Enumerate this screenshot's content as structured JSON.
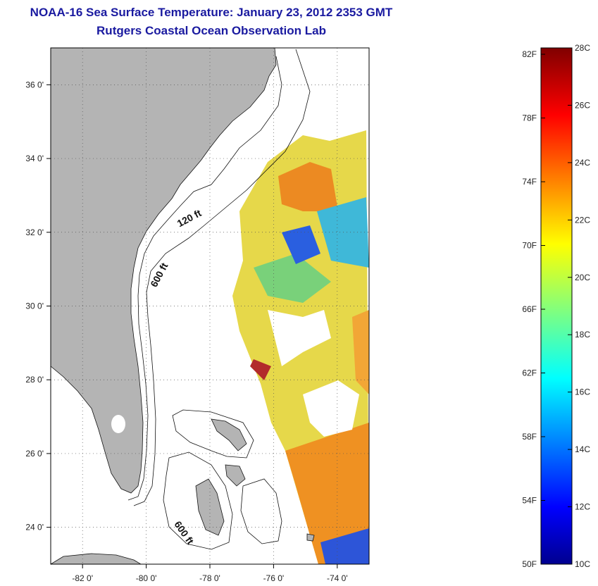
{
  "header": {
    "title": "NOAA-16 Sea Surface Temperature:  January 23, 2012 2353 GMT",
    "subtitle": "Rutgers Coastal Ocean Observation Lab"
  },
  "map": {
    "lon_range": [
      -83,
      -73
    ],
    "lat_range": [
      23,
      37
    ],
    "lon_ticks": [
      {
        "value": -82,
        "label": "-82 0'"
      },
      {
        "value": -80,
        "label": "-80 0'"
      },
      {
        "value": -78,
        "label": "-78 0'"
      },
      {
        "value": -76,
        "label": "-76 0'"
      },
      {
        "value": -74,
        "label": "-74 0'"
      }
    ],
    "lat_ticks": [
      {
        "value": 24,
        "label": "24 0'"
      },
      {
        "value": 26,
        "label": "26 0'"
      },
      {
        "value": 28,
        "label": "28 0'"
      },
      {
        "value": 30,
        "label": "30 0'"
      },
      {
        "value": 32,
        "label": "32 0'"
      },
      {
        "value": 34,
        "label": "34 0'"
      },
      {
        "value": 36,
        "label": "36 0'"
      }
    ],
    "contour_labels": [
      {
        "label": "120 ft",
        "lon": -78.6,
        "lat": 32.3,
        "rotate": -28
      },
      {
        "label": "600 ft",
        "lon": -79.5,
        "lat": 30.8,
        "rotate": -62
      },
      {
        "label": "600 ft",
        "lon": -78.9,
        "lat": 23.8,
        "rotate": 55
      }
    ],
    "colors": {
      "land": "#b4b4b4",
      "grid": "#555555"
    }
  },
  "colorbar": {
    "celsius_range": [
      10,
      28
    ],
    "fahrenheit_ticks": [
      {
        "value": 50,
        "label": "50F"
      },
      {
        "value": 54,
        "label": "54F"
      },
      {
        "value": 58,
        "label": "58F"
      },
      {
        "value": 62,
        "label": "62F"
      },
      {
        "value": 66,
        "label": "66F"
      },
      {
        "value": 70,
        "label": "70F"
      },
      {
        "value": 74,
        "label": "74F"
      },
      {
        "value": 78,
        "label": "78F"
      },
      {
        "value": 82,
        "label": "82F"
      }
    ],
    "celsius_ticks": [
      {
        "value": 10,
        "label": "10C"
      },
      {
        "value": 12,
        "label": "12C"
      },
      {
        "value": 14,
        "label": "14C"
      },
      {
        "value": 16,
        "label": "16C"
      },
      {
        "value": 18,
        "label": "18C"
      },
      {
        "value": 20,
        "label": "20C"
      },
      {
        "value": 22,
        "label": "22C"
      },
      {
        "value": 24,
        "label": "24C"
      },
      {
        "value": 26,
        "label": "26C"
      },
      {
        "value": 28,
        "label": "28C"
      }
    ],
    "colormap": "jet"
  }
}
